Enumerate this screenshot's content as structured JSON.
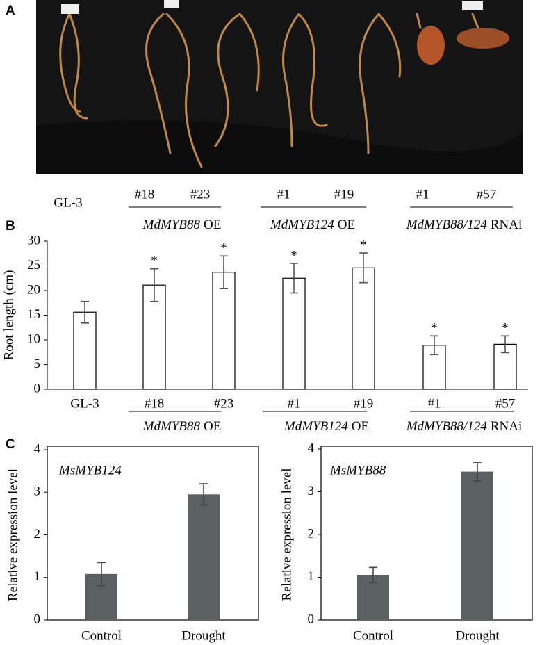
{
  "panel_a": {
    "label": "A",
    "samples": [
      "GL-3",
      "#18",
      "#23",
      "#1",
      "#19",
      "#1",
      "#57"
    ],
    "groups": [
      {
        "gene": "MdMYB88",
        "suffix": "OE"
      },
      {
        "gene": "MdMYB124",
        "suffix": "OE"
      },
      {
        "gene": "MdMYB88/124",
        "suffix": "RNAi"
      }
    ]
  },
  "chart_data": [
    {
      "type": "bar",
      "panel": "B",
      "ylabel": "Root length (cm)",
      "categories": [
        "GL-3",
        "#18",
        "#23",
        "#1",
        "#19",
        "#1",
        "#57"
      ],
      "groups": [
        {
          "gene": "MdMYB88",
          "suffix": "OE"
        },
        {
          "gene": "MdMYB124",
          "suffix": "OE"
        },
        {
          "gene": "MdMYB88/124",
          "suffix": "RNAi"
        }
      ],
      "values": [
        15.6,
        21.1,
        23.7,
        22.5,
        24.6,
        8.9,
        9.1
      ],
      "errors": [
        2.2,
        3.3,
        3.3,
        3.0,
        3.0,
        1.9,
        1.7
      ],
      "significance": [
        null,
        "*",
        "*",
        "*",
        "*",
        "*",
        "*"
      ],
      "color": "#ffffff",
      "edgecolor": "#000000",
      "ylim": [
        0,
        30
      ],
      "yticks": [
        0,
        5,
        10,
        15,
        20,
        25,
        30
      ]
    },
    {
      "type": "bar",
      "panel": "C",
      "title": "MsMYB124",
      "ylabel": "Relative expression level",
      "categories": [
        "Control",
        "Drought"
      ],
      "values": [
        1.08,
        2.95
      ],
      "errors": [
        0.27,
        0.25
      ],
      "color": "#5b6062",
      "ylim": [
        0,
        4
      ],
      "yticks": [
        0,
        1,
        2,
        3,
        4
      ]
    },
    {
      "type": "bar",
      "title": "MsMYB88",
      "ylabel": "Relative expression level",
      "categories": [
        "Control",
        "Drought"
      ],
      "values": [
        1.05,
        3.47
      ],
      "errors": [
        0.18,
        0.22
      ],
      "color": "#5b6062",
      "ylim": [
        0,
        4
      ],
      "yticks": [
        0,
        1,
        2,
        3,
        4
      ]
    }
  ]
}
